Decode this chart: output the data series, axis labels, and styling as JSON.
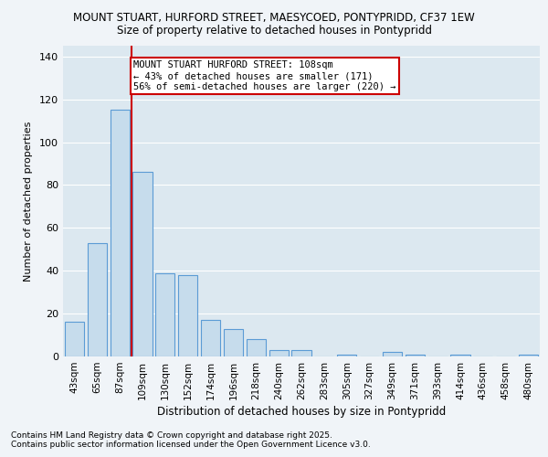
{
  "title1": "MOUNT STUART, HURFORD STREET, MAESYCOED, PONTYPRIDD, CF37 1EW",
  "title2": "Size of property relative to detached houses in Pontypridd",
  "xlabel": "Distribution of detached houses by size in Pontypridd",
  "ylabel": "Number of detached properties",
  "footnote1": "Contains HM Land Registry data © Crown copyright and database right 2025.",
  "footnote2": "Contains public sector information licensed under the Open Government Licence v3.0.",
  "categories": [
    "43sqm",
    "65sqm",
    "87sqm",
    "109sqm",
    "130sqm",
    "152sqm",
    "174sqm",
    "196sqm",
    "218sqm",
    "240sqm",
    "262sqm",
    "283sqm",
    "305sqm",
    "327sqm",
    "349sqm",
    "371sqm",
    "393sqm",
    "414sqm",
    "436sqm",
    "458sqm",
    "480sqm"
  ],
  "values": [
    16,
    53,
    115,
    86,
    39,
    38,
    17,
    13,
    8,
    3,
    3,
    0,
    1,
    0,
    2,
    1,
    0,
    1,
    0,
    0,
    1
  ],
  "bar_color": "#c6dcec",
  "bar_edge_color": "#5b9bd5",
  "highlight_line_color": "#cc0000",
  "highlight_bar_index": 2,
  "annotation_text": "MOUNT STUART HURFORD STREET: 108sqm\n← 43% of detached houses are smaller (171)\n56% of semi-detached houses are larger (220) →",
  "annotation_box_color": "#ffffff",
  "annotation_border_color": "#cc0000",
  "ylim": [
    0,
    145
  ],
  "yticks": [
    0,
    20,
    40,
    60,
    80,
    100,
    120,
    140
  ],
  "background_color": "#f0f4f8",
  "plot_bg_color": "#dce8f0"
}
